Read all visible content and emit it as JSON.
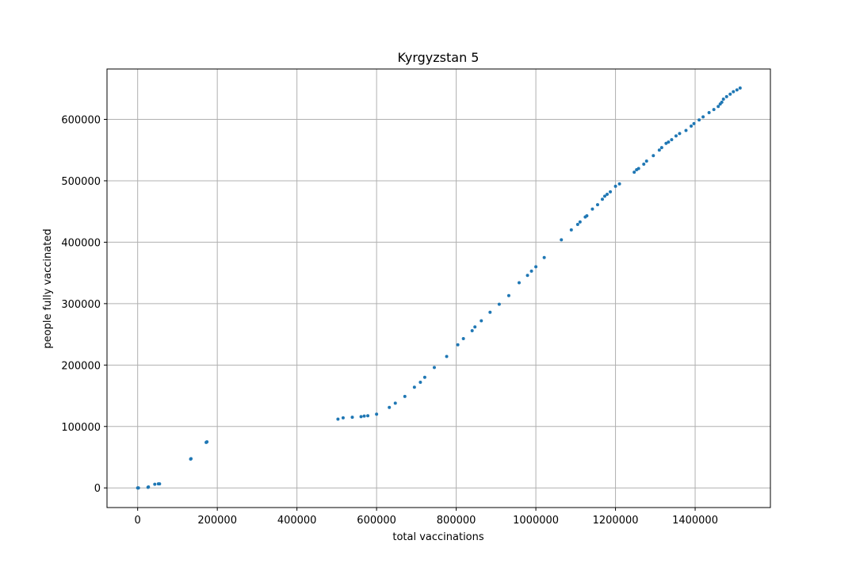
{
  "chart_data": {
    "type": "scatter",
    "title": "Kyrgyzstan 5",
    "xlabel": "total vaccinations",
    "ylabel": "people fully vaccinated",
    "xlim": [
      -77000,
      1589000
    ],
    "ylim": [
      -32000,
      682000
    ],
    "xticks": [
      0,
      200000,
      400000,
      600000,
      800000,
      1000000,
      1200000,
      1400000
    ],
    "yticks": [
      0,
      100000,
      200000,
      300000,
      400000,
      500000,
      600000
    ],
    "grid": true,
    "marker_color": "#1f77b4",
    "points": [
      {
        "x": 0,
        "y": 0
      },
      {
        "x": 1000,
        "y": 0
      },
      {
        "x": 2000,
        "y": 0
      },
      {
        "x": 26000,
        "y": 1000
      },
      {
        "x": 27000,
        "y": 1500
      },
      {
        "x": 43000,
        "y": 6000
      },
      {
        "x": 52000,
        "y": 6500
      },
      {
        "x": 55000,
        "y": 6500
      },
      {
        "x": 133000,
        "y": 47000
      },
      {
        "x": 134000,
        "y": 47500
      },
      {
        "x": 172000,
        "y": 74000
      },
      {
        "x": 173000,
        "y": 74500
      },
      {
        "x": 174000,
        "y": 75000
      },
      {
        "x": 503000,
        "y": 112000
      },
      {
        "x": 516000,
        "y": 114000
      },
      {
        "x": 539000,
        "y": 115000
      },
      {
        "x": 561000,
        "y": 116000
      },
      {
        "x": 569000,
        "y": 117000
      },
      {
        "x": 578000,
        "y": 117500
      },
      {
        "x": 600000,
        "y": 120000
      },
      {
        "x": 632000,
        "y": 131000
      },
      {
        "x": 647000,
        "y": 138000
      },
      {
        "x": 671000,
        "y": 149000
      },
      {
        "x": 695000,
        "y": 164000
      },
      {
        "x": 710000,
        "y": 172000
      },
      {
        "x": 721000,
        "y": 180000
      },
      {
        "x": 745000,
        "y": 196000
      },
      {
        "x": 776000,
        "y": 214000
      },
      {
        "x": 804000,
        "y": 233000
      },
      {
        "x": 818000,
        "y": 243000
      },
      {
        "x": 840000,
        "y": 256000
      },
      {
        "x": 847000,
        "y": 262000
      },
      {
        "x": 863000,
        "y": 272000
      },
      {
        "x": 885000,
        "y": 286000
      },
      {
        "x": 908000,
        "y": 299000
      },
      {
        "x": 932000,
        "y": 313000
      },
      {
        "x": 958000,
        "y": 334000
      },
      {
        "x": 979000,
        "y": 346000
      },
      {
        "x": 989000,
        "y": 353000
      },
      {
        "x": 1000000,
        "y": 360000
      },
      {
        "x": 1021000,
        "y": 375000
      },
      {
        "x": 1064000,
        "y": 404000
      },
      {
        "x": 1089000,
        "y": 420000
      },
      {
        "x": 1105000,
        "y": 429000
      },
      {
        "x": 1111000,
        "y": 433000
      },
      {
        "x": 1124000,
        "y": 441000
      },
      {
        "x": 1128000,
        "y": 443000
      },
      {
        "x": 1142000,
        "y": 454000
      },
      {
        "x": 1155000,
        "y": 461000
      },
      {
        "x": 1167000,
        "y": 470000
      },
      {
        "x": 1173000,
        "y": 475000
      },
      {
        "x": 1179000,
        "y": 478000
      },
      {
        "x": 1187000,
        "y": 482000
      },
      {
        "x": 1200000,
        "y": 491000
      },
      {
        "x": 1210000,
        "y": 495000
      },
      {
        "x": 1247000,
        "y": 514000
      },
      {
        "x": 1253000,
        "y": 518000
      },
      {
        "x": 1258000,
        "y": 520000
      },
      {
        "x": 1271000,
        "y": 527000
      },
      {
        "x": 1278000,
        "y": 532000
      },
      {
        "x": 1295000,
        "y": 541000
      },
      {
        "x": 1310000,
        "y": 550000
      },
      {
        "x": 1316000,
        "y": 554000
      },
      {
        "x": 1327000,
        "y": 561000
      },
      {
        "x": 1333000,
        "y": 563000
      },
      {
        "x": 1341000,
        "y": 567000
      },
      {
        "x": 1352000,
        "y": 573000
      },
      {
        "x": 1361000,
        "y": 577000
      },
      {
        "x": 1377000,
        "y": 582000
      },
      {
        "x": 1390000,
        "y": 589000
      },
      {
        "x": 1397000,
        "y": 593000
      },
      {
        "x": 1410000,
        "y": 599000
      },
      {
        "x": 1420000,
        "y": 604000
      },
      {
        "x": 1435000,
        "y": 611000
      },
      {
        "x": 1447000,
        "y": 616000
      },
      {
        "x": 1458000,
        "y": 621000
      },
      {
        "x": 1463000,
        "y": 625000
      },
      {
        "x": 1467000,
        "y": 628000
      },
      {
        "x": 1471000,
        "y": 633000
      },
      {
        "x": 1479000,
        "y": 637000
      },
      {
        "x": 1488000,
        "y": 641000
      },
      {
        "x": 1496000,
        "y": 645000
      },
      {
        "x": 1505000,
        "y": 648000
      },
      {
        "x": 1513000,
        "y": 651000
      }
    ]
  }
}
